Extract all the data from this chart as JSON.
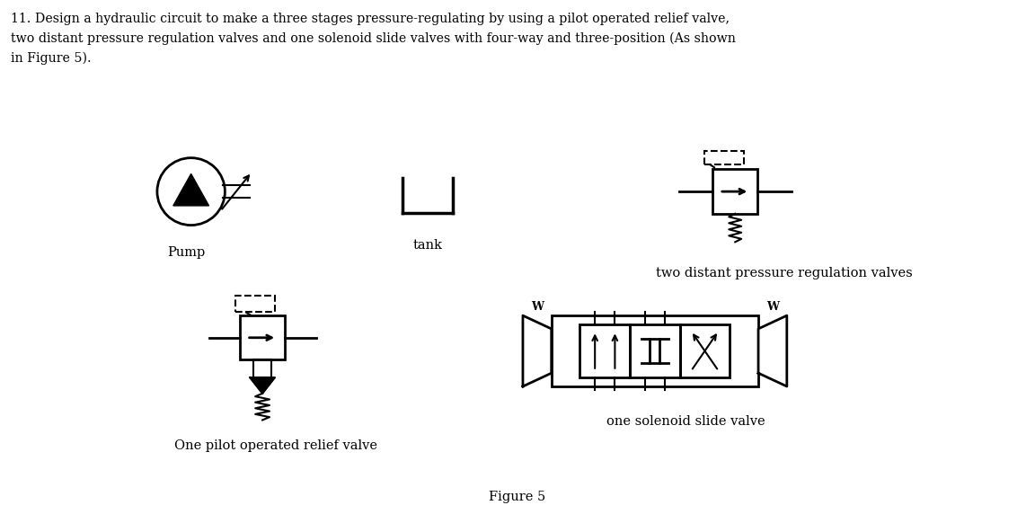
{
  "background_color": "#ffffff",
  "title_line1": "11. Design a hydraulic circuit to make a three stages pressure-regulating by using a pilot operated relief valve,",
  "title_line2": "two distant pressure regulation valves and one solenoid slide valves with four-way and three-position (As shown",
  "title_line3": "in Figure 5).",
  "figure_caption": "Figure 5",
  "label_pump": "Pump",
  "label_tank": "tank",
  "label_pressure_valve": "two distant pressure regulation valves",
  "label_pilot_relief": "One pilot operated relief valve",
  "label_solenoid": "one solenoid slide valve"
}
